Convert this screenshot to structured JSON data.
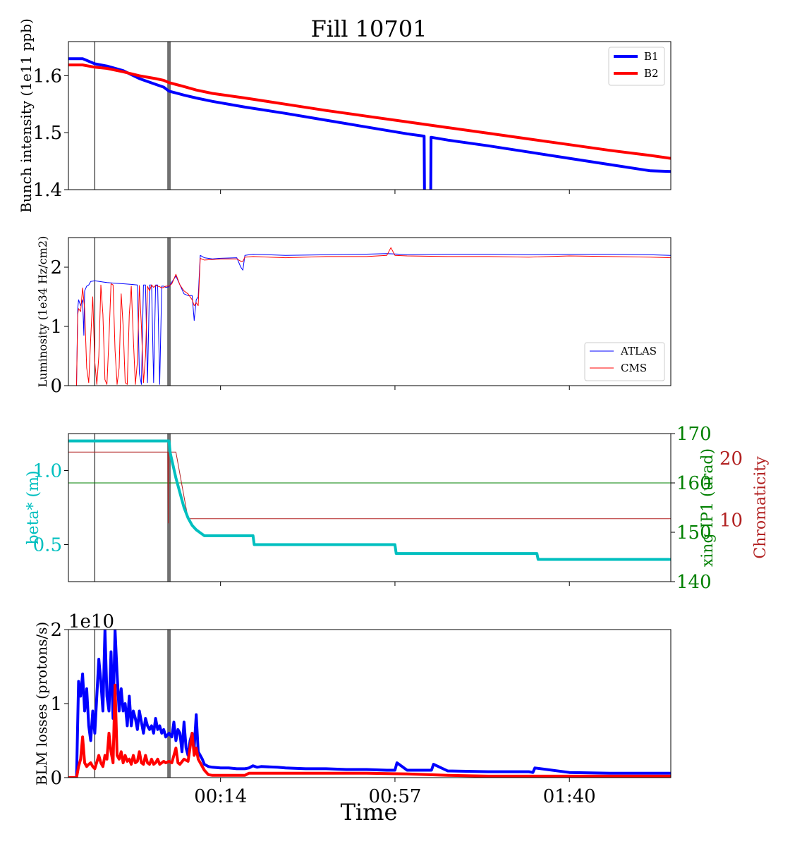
{
  "figure": {
    "title": "Fill 10701",
    "xlabel": "Time",
    "x_ticks": [
      "00:14",
      "00:57",
      "01:40"
    ],
    "x_tick_minutes": [
      14,
      57,
      100
    ],
    "x_range_minutes": [
      -23.5,
      125
    ],
    "markers_minutes": [
      -17,
      1.3
    ]
  },
  "chart_data": [
    {
      "type": "line",
      "ylabel": "Bunch intensity (1e11 ppb)",
      "ylim": [
        1.4,
        1.66
      ],
      "yticks": [
        "1.4",
        "1.5",
        "1.6"
      ],
      "ytick_values": [
        1.4,
        1.5,
        1.6
      ],
      "legend": "top-right",
      "series": [
        {
          "name": "B1",
          "color": "#0000ff",
          "width": 4,
          "x": [
            -23.5,
            -20,
            -17,
            -14,
            -10,
            -6,
            -2,
            0,
            1.3,
            5,
            8,
            12,
            20,
            30,
            40,
            50,
            60,
            64.2,
            64.3,
            65.8,
            65.9,
            70,
            80,
            90,
            100,
            110,
            120,
            125
          ],
          "y": [
            1.63,
            1.63,
            1.621,
            1.617,
            1.609,
            1.595,
            1.585,
            1.58,
            1.573,
            1.566,
            1.561,
            1.555,
            1.545,
            1.534,
            1.522,
            1.51,
            1.498,
            1.494,
            1.38,
            1.38,
            1.492,
            1.487,
            1.477,
            1.466,
            1.455,
            1.444,
            1.433,
            1.432
          ]
        },
        {
          "name": "B2",
          "color": "#ff0000",
          "width": 4,
          "x": [
            -23.5,
            -20,
            -17,
            -14,
            -10,
            -6,
            -2,
            0,
            1.3,
            5,
            8,
            12,
            20,
            30,
            40,
            50,
            60,
            70,
            80,
            90,
            100,
            110,
            120,
            125
          ],
          "y": [
            1.619,
            1.619,
            1.615,
            1.613,
            1.607,
            1.6,
            1.595,
            1.592,
            1.588,
            1.581,
            1.575,
            1.569,
            1.561,
            1.55,
            1.539,
            1.529,
            1.519,
            1.509,
            1.499,
            1.489,
            1.479,
            1.469,
            1.46,
            1.455
          ]
        }
      ]
    },
    {
      "type": "line",
      "ylabel": "Luminosity (1e34 Hz/cm2)",
      "ylim": [
        0,
        2.5
      ],
      "yticks": [
        "0",
        "1",
        "2"
      ],
      "ytick_values": [
        0,
        1,
        2
      ],
      "legend": "bottom-right",
      "series": [
        {
          "name": "ATLAS",
          "color": "#0000ff",
          "width": 1,
          "x": [
            -23.5,
            -21.5,
            -21.2,
            -21,
            -20.5,
            -20,
            -19.7,
            -19.5,
            -19,
            -18.5,
            -18,
            -17,
            -15,
            -14,
            -12,
            -10,
            -8,
            -6.5,
            -6,
            -5.5,
            -5,
            -4.5,
            -4,
            -3.5,
            -3,
            -2.5,
            -2,
            -1.5,
            -1,
            -0.5,
            0,
            0.5,
            1.3,
            2,
            3,
            4,
            5,
            6,
            7,
            7.5,
            8,
            8.5,
            9,
            10,
            12,
            14,
            18,
            19,
            19.5,
            20,
            22,
            30,
            40,
            50,
            55,
            58,
            60,
            70,
            80,
            90,
            100,
            110,
            120,
            125
          ],
          "y": [
            0,
            0,
            1.3,
            1.45,
            1.35,
            1.45,
            0.85,
            1.6,
            1.68,
            1.7,
            1.76,
            1.77,
            1.75,
            1.74,
            1.73,
            1.72,
            1.71,
            1.7,
            0.2,
            0.02,
            1.7,
            1.7,
            0.05,
            1.7,
            1.7,
            0.05,
            1.7,
            1.7,
            0.02,
            1.68,
            1.68,
            1.66,
            1.67,
            1.75,
            1.85,
            1.7,
            1.55,
            1.52,
            1.52,
            1.1,
            1.45,
            1.5,
            2.2,
            2.16,
            2.14,
            2.15,
            2.16,
            2.0,
            1.95,
            2.2,
            2.22,
            2.2,
            2.21,
            2.22,
            2.23,
            2.22,
            2.21,
            2.22,
            2.22,
            2.21,
            2.22,
            2.22,
            2.21,
            2.2
          ]
        },
        {
          "name": "CMS",
          "color": "#ff0000",
          "width": 1,
          "x": [
            -23.5,
            -21.5,
            -21.2,
            -21,
            -20.5,
            -20,
            -19.5,
            -19,
            -18.5,
            -18,
            -17.5,
            -17,
            -16.5,
            -16,
            -15.5,
            -15,
            -14.5,
            -14,
            -13.5,
            -13,
            -12.5,
            -12,
            -11.5,
            -11,
            -10.5,
            -10,
            -9.5,
            -9,
            -8.5,
            -8,
            -7.5,
            -7,
            -6.5,
            -6,
            -5.5,
            -5,
            -4.5,
            -4,
            -3.5,
            -3,
            -2.5,
            -2,
            -1.5,
            -1,
            -0.5,
            0,
            0.5,
            1.3,
            2,
            3,
            4,
            5,
            6,
            7,
            7.5,
            8,
            8.5,
            9,
            10,
            12,
            14,
            18,
            19,
            19.5,
            20,
            22,
            30,
            40,
            50,
            55,
            56,
            57,
            60,
            70,
            80,
            90,
            100,
            110,
            120,
            125
          ],
          "y": [
            0,
            0,
            1.2,
            1.3,
            1.25,
            1.65,
            1.3,
            0.3,
            0.05,
            0.8,
            1.5,
            0.4,
            0.02,
            0.5,
            1.7,
            1.2,
            0.1,
            0.02,
            0.8,
            1.72,
            1.7,
            0.6,
            0.02,
            0.3,
            1.55,
            1.0,
            0.05,
            0.02,
            1.2,
            1.68,
            0.8,
            0.02,
            0.4,
            1.69,
            1.0,
            0.05,
            0.5,
            1.68,
            1.6,
            1.7,
            1.66,
            1.69,
            1.68,
            1.67,
            1.65,
            1.66,
            1.68,
            1.68,
            1.72,
            1.88,
            1.7,
            1.6,
            1.55,
            1.45,
            1.35,
            1.4,
            1.35,
            2.15,
            2.12,
            2.13,
            2.14,
            2.14,
            2.1,
            2.1,
            2.17,
            2.18,
            2.16,
            2.18,
            2.18,
            2.2,
            2.33,
            2.2,
            2.19,
            2.18,
            2.18,
            2.17,
            2.19,
            2.18,
            2.17,
            2.16
          ]
        }
      ]
    },
    {
      "type": "line",
      "ylabel": "beta* (m)",
      "ylabel_color": "#00bfbf",
      "ylim": [
        0.25,
        1.25
      ],
      "yticks": [
        "0.5",
        "1.0"
      ],
      "ytick_values": [
        0.5,
        1.0
      ],
      "series": [
        {
          "color": "#00bfbf",
          "width": 4,
          "x": [
            -23.5,
            1.3,
            1.6,
            3,
            4,
            5,
            6,
            7,
            8,
            9,
            10,
            22,
            22.3,
            57,
            57.3,
            92,
            92.3,
            125
          ],
          "y": [
            1.2,
            1.2,
            1.12,
            0.95,
            0.85,
            0.75,
            0.68,
            0.63,
            0.6,
            0.58,
            0.56,
            0.56,
            0.5,
            0.5,
            0.44,
            0.44,
            0.4,
            0.4
          ]
        }
      ],
      "right_axis_1": {
        "ylabel": "xing IP1 (urad)",
        "color": "#008000",
        "ylim": [
          140,
          170
        ],
        "yticks": [
          "140",
          "150",
          "160",
          "170"
        ],
        "ytick_values": [
          140,
          150,
          160,
          170
        ],
        "series": [
          {
            "color": "#008000",
            "width": 1,
            "x": [
              -23.5,
              125
            ],
            "y": [
              160,
              160
            ]
          }
        ]
      },
      "right_axis_2": {
        "ylabel": "Chromaticity",
        "color": "#b22222",
        "ylim": [
          0,
          24
        ],
        "yticks": [
          "10",
          "20"
        ],
        "ytick_values": [
          10,
          20
        ],
        "series": [
          {
            "color": "#b22222",
            "width": 1,
            "x": [
              -23.5,
              1.0,
              1.1,
              1.2,
              3,
              6,
              125
            ],
            "y": [
              21,
              21,
              9.5,
              21,
              21,
              10.2,
              10.2
            ]
          }
        ]
      }
    },
    {
      "type": "line",
      "ylabel": "BLM losses (protons/s)",
      "ylim": [
        0,
        2
      ],
      "yticks": [
        "0",
        "1",
        "2"
      ],
      "ytick_values": [
        0,
        1,
        2
      ],
      "scale_label": "1e10",
      "series": [
        {
          "color": "#0000ff",
          "width": 4,
          "x": [
            -23.5,
            -21.5,
            -21,
            -20.5,
            -20,
            -19.5,
            -19,
            -18.5,
            -18,
            -17.5,
            -17,
            -16,
            -15.5,
            -15,
            -14.5,
            -14,
            -13.5,
            -13,
            -12.5,
            -12,
            -11.5,
            -11,
            -10.5,
            -10,
            -9.5,
            -9,
            -8.5,
            -8,
            -7.5,
            -7,
            -6.5,
            -6,
            -5.5,
            -5,
            -4.5,
            -4,
            -3.5,
            -3,
            -2.5,
            -2,
            -1.5,
            -1,
            -0.5,
            0,
            0.5,
            1.3,
            2,
            2.5,
            3,
            3.5,
            4,
            4.5,
            5,
            5.5,
            6,
            6.5,
            7,
            7.5,
            8,
            8.5,
            9,
            9.5,
            10,
            11,
            12,
            14,
            16,
            18,
            20,
            21,
            22,
            23,
            24,
            28,
            30,
            35,
            40,
            45,
            50,
            55,
            57,
            57.5,
            60,
            65,
            66,
            66.5,
            70,
            80,
            90,
            91,
            91.5,
            100,
            110,
            120,
            125
          ],
          "y": [
            0,
            0,
            1.3,
            1.1,
            1.4,
            0.9,
            1.2,
            0.7,
            0.5,
            0.9,
            0.6,
            1.6,
            1.3,
            0.9,
            2.0,
            1.1,
            0.9,
            1.7,
            0.8,
            2.0,
            1.4,
            0.9,
            1.2,
            0.9,
            1.0,
            0.7,
            1.1,
            0.7,
            0.9,
            0.8,
            0.65,
            0.9,
            0.75,
            0.6,
            0.8,
            0.7,
            0.65,
            0.7,
            0.6,
            0.8,
            0.65,
            0.7,
            0.6,
            0.65,
            0.55,
            0.6,
            0.55,
            0.75,
            0.5,
            0.65,
            0.6,
            0.35,
            0.75,
            0.4,
            0.3,
            0.5,
            0.6,
            0.4,
            0.85,
            0.35,
            0.3,
            0.25,
            0.18,
            0.15,
            0.14,
            0.13,
            0.13,
            0.12,
            0.12,
            0.13,
            0.16,
            0.14,
            0.15,
            0.14,
            0.13,
            0.12,
            0.12,
            0.11,
            0.11,
            0.1,
            0.1,
            0.2,
            0.1,
            0.1,
            0.1,
            0.18,
            0.09,
            0.08,
            0.08,
            0.07,
            0.13,
            0.07,
            0.06,
            0.06,
            0.06
          ]
        },
        {
          "color": "#ff0000",
          "width": 4,
          "x": [
            -23.5,
            -21.5,
            -21,
            -20.5,
            -20,
            -19.5,
            -19,
            -18.5,
            -18,
            -17.5,
            -17,
            -16,
            -15.5,
            -15,
            -14.5,
            -14,
            -13.5,
            -13,
            -12.5,
            -12,
            -11.5,
            -11,
            -10.5,
            -10,
            -9.5,
            -9,
            -8.5,
            -8,
            -7.5,
            -7,
            -6.5,
            -6,
            -5.5,
            -5,
            -4.5,
            -4,
            -3.5,
            -3,
            -2.5,
            -2,
            -1.5,
            -1,
            -0.5,
            0,
            0.5,
            1.3,
            2,
            3,
            3.5,
            4,
            5,
            6,
            7,
            7.5,
            8,
            8.5,
            9,
            10,
            11,
            12,
            20,
            21,
            22,
            30,
            40,
            50,
            60,
            70,
            80,
            90,
            100,
            110,
            120,
            125
          ],
          "y": [
            0,
            0,
            0.15,
            0.25,
            0.55,
            0.2,
            0.15,
            0.18,
            0.2,
            0.15,
            0.12,
            0.3,
            0.2,
            0.15,
            0.3,
            0.25,
            0.6,
            0.35,
            0.2,
            1.25,
            0.3,
            0.25,
            0.35,
            0.2,
            0.3,
            0.22,
            0.25,
            0.18,
            0.3,
            0.2,
            0.22,
            0.35,
            0.2,
            0.18,
            0.3,
            0.2,
            0.18,
            0.25,
            0.18,
            0.2,
            0.25,
            0.18,
            0.2,
            0.22,
            0.2,
            0.22,
            0.2,
            0.4,
            0.2,
            0.18,
            0.25,
            0.22,
            0.6,
            0.3,
            0.4,
            0.25,
            0.2,
            0.1,
            0.04,
            0.03,
            0.03,
            0.06,
            0.06,
            0.06,
            0.06,
            0.06,
            0.05,
            0.03,
            0.02,
            0.02,
            0.02,
            0.02,
            0.02,
            0.02
          ]
        }
      ]
    }
  ]
}
